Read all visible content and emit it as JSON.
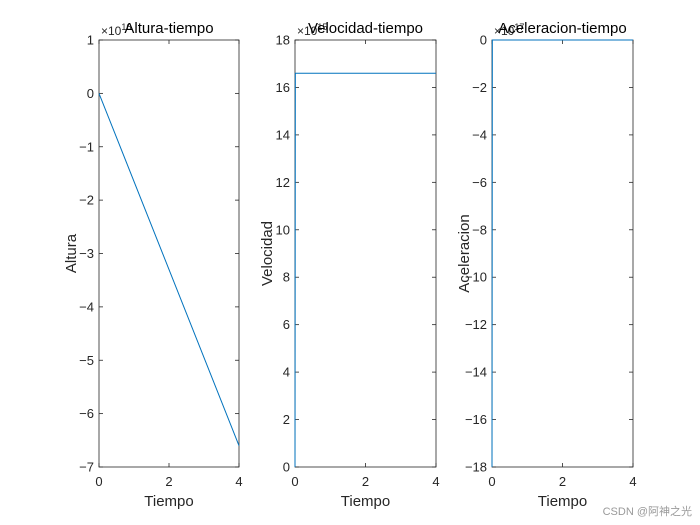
{
  "chart_data": [
    {
      "type": "line",
      "title": "Altura-tiempo",
      "xlabel": "Tiempo",
      "ylabel": "Altura",
      "exponent_label": "×10^16",
      "xlim": [
        0,
        4
      ],
      "ylim": [
        -7,
        1
      ],
      "xticks": [
        0,
        2,
        4
      ],
      "yticks": [
        1,
        0,
        -1,
        -2,
        -3,
        -4,
        -5,
        -6,
        -7
      ],
      "x": [
        0,
        4
      ],
      "y": [
        0,
        -6.6
      ],
      "color": "#0072BD"
    },
    {
      "type": "line",
      "title": "Velocidad-tiempo",
      "xlabel": "Tiempo",
      "ylabel": "Velocidad",
      "exponent_label": "×10^15",
      "xlim": [
        0,
        4
      ],
      "ylim": [
        0,
        18
      ],
      "xticks": [
        0,
        2,
        4
      ],
      "yticks": [
        18,
        16,
        14,
        12,
        10,
        8,
        6,
        4,
        2,
        0
      ],
      "x": [
        0,
        0.01,
        4
      ],
      "y": [
        0,
        16.6,
        16.6
      ],
      "color": "#0072BD"
    },
    {
      "type": "line",
      "title": "Aceleracion-tiempo",
      "xlabel": "Tiempo",
      "ylabel": "Aceleracion",
      "exponent_label": "×10^17",
      "xlim": [
        0,
        4
      ],
      "ylim": [
        -18,
        0
      ],
      "xticks": [
        0,
        2,
        4
      ],
      "yticks": [
        0,
        -2,
        -4,
        -6,
        -8,
        -10,
        -12,
        -14,
        -16,
        -18
      ],
      "x": [
        0,
        0.01,
        4
      ],
      "y": [
        -18,
        0,
        0
      ],
      "color": "#0072BD"
    }
  ],
  "watermark": "CSDN @阿神之光"
}
